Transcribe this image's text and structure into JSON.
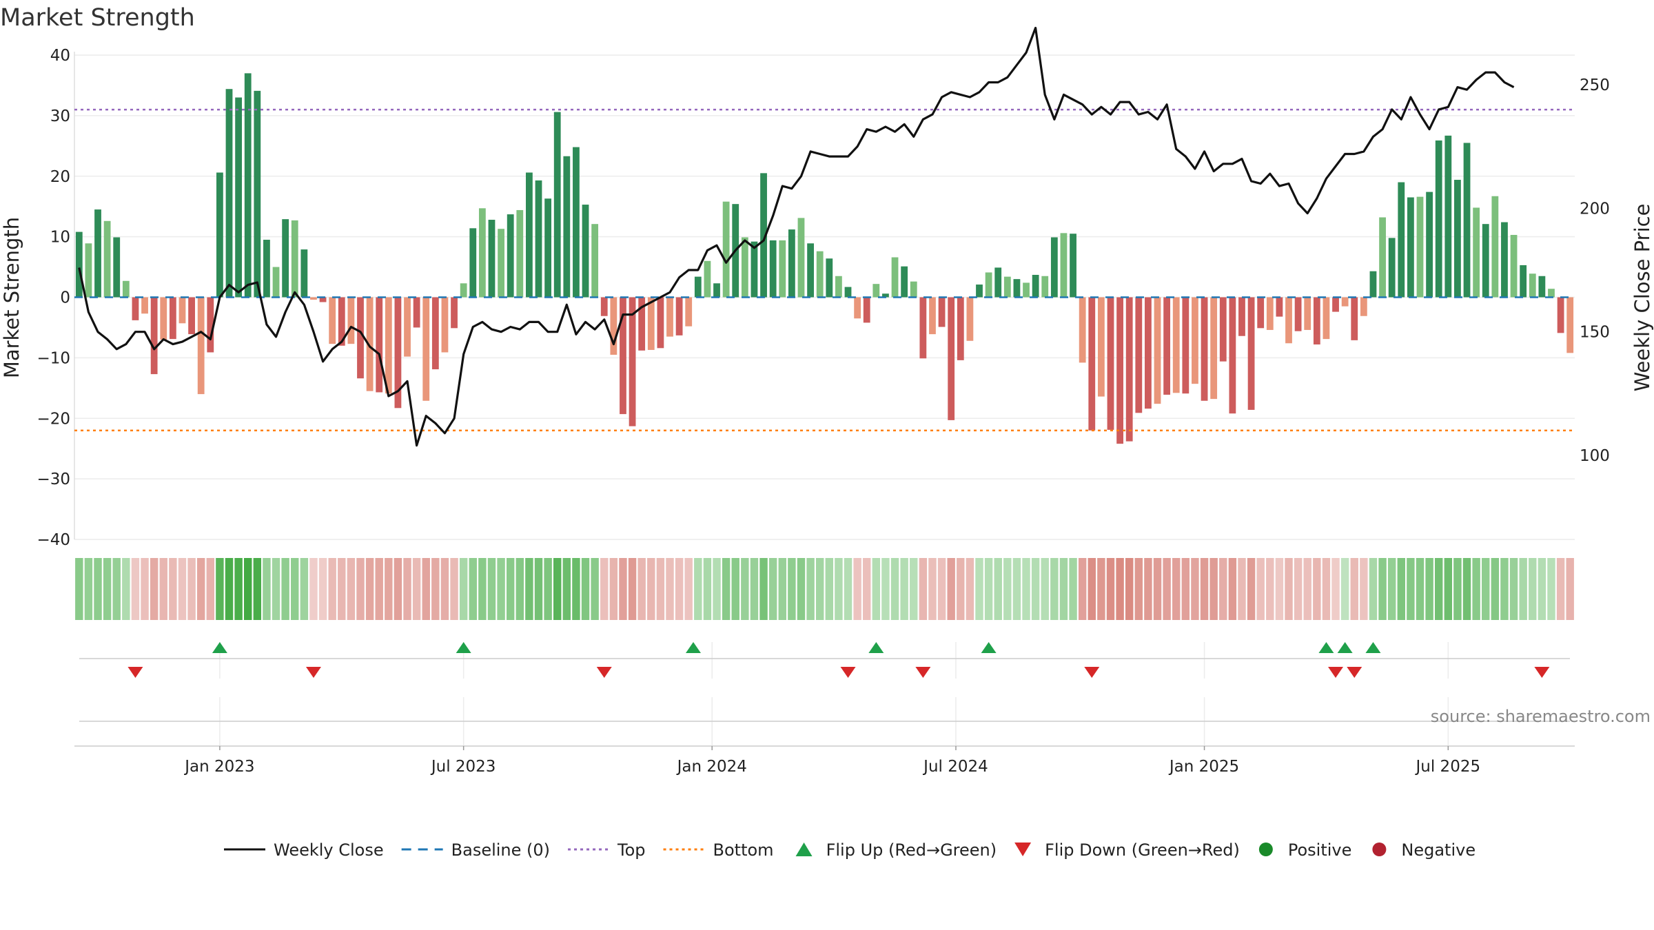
{
  "title": "Market Strength",
  "source": "source: sharemaestro.com",
  "colors": {
    "pos_dark": "#2e8b57",
    "pos_light": "#7cbf7c",
    "neg_dark": "#cd5c5c",
    "neg_light": "#e9967a",
    "close": "#111111",
    "baseline": "#1f77b4",
    "top": "#9467bd",
    "bottom": "#ff7f0e",
    "flip_up": "#1fa04a",
    "flip_down": "#d62728",
    "positive": "#1a8a2a",
    "negative": "#b22230"
  },
  "legend": [
    {
      "label": "Weekly Close",
      "icon": "line-solid"
    },
    {
      "label": "Baseline (0)",
      "icon": "line-dashed"
    },
    {
      "label": "Top",
      "icon": "line-dotted-purple"
    },
    {
      "label": "Bottom",
      "icon": "line-dotted-orange"
    },
    {
      "label": "Flip Up (Red→Green)",
      "icon": "triangle-up"
    },
    {
      "label": "Flip Down (Green→Red)",
      "icon": "triangle-down"
    },
    {
      "label": "Positive",
      "icon": "dot-green"
    },
    {
      "label": "Negative",
      "icon": "dot-red"
    }
  ],
  "chart_data": {
    "type": "bar",
    "ylabel": "Market Strength",
    "y2label": "Weekly Close Price",
    "ylim": [
      -40,
      40
    ],
    "y2lim": [
      66,
      262
    ],
    "yticks": [
      40,
      30,
      20,
      10,
      0,
      -10,
      -20,
      -30,
      -40
    ],
    "y2ticks": [
      250,
      200,
      150,
      100
    ],
    "ytick_labels": [
      "40",
      "30",
      "20",
      "10",
      "0",
      "−10",
      "−20",
      "−30",
      "−40"
    ],
    "y2tick_labels": [
      "250",
      "200",
      "150",
      "100"
    ],
    "xticks": [
      "Jan 2023",
      "Jul 2023",
      "Jan 2024",
      "Jul 2024",
      "Jan 2025",
      "Jul 2025"
    ],
    "xtick_weeks": [
      15,
      41,
      67.5,
      93.5,
      120,
      146
    ],
    "top_line": 31,
    "bottom_line": -22,
    "series": [
      {
        "name": "Market Strength",
        "values": [
          10.8,
          8.9,
          14.5,
          12.6,
          9.9,
          2.7,
          -3.8,
          -2.7,
          -12.7,
          -7,
          -6.9,
          -4.3,
          -6.1,
          -16,
          -9.1,
          20.6,
          34.4,
          33,
          37,
          34.1,
          9.5,
          5,
          12.9,
          12.7,
          7.9,
          -0.4,
          -0.8,
          -7.7,
          -8,
          -7.7,
          -13.4,
          -15.5,
          -15.7,
          -15.9,
          -18.3,
          -9.8,
          -5,
          -17.1,
          -11.9,
          -9.1,
          -5.1,
          2.3,
          11.4,
          14.7,
          12.8,
          11.3,
          13.7,
          14.4,
          20.6,
          19.3,
          16.3,
          30.6,
          23.3,
          24.8,
          15.3,
          12.1,
          -3.1,
          -9.5,
          -19.3,
          -21.3,
          -8.8,
          -8.7,
          -8.4,
          -6.5,
          -6.3,
          -4.8,
          3.4,
          6,
          2.3,
          15.8,
          15.4,
          9.9,
          9.2,
          20.5,
          9.4,
          9.4,
          11.2,
          13.1,
          8.9,
          7.6,
          6.4,
          3.5,
          1.7,
          -3.5,
          -4.2,
          2.2,
          0.6,
          6.6,
          5.1,
          2.6,
          -10.1,
          -6.1,
          -4.9,
          -20.3,
          -10.4,
          -7.2,
          2.1,
          4.1,
          4.9,
          3.4,
          3,
          2.4,
          3.7,
          3.5,
          9.9,
          10.6,
          10.5,
          -10.8,
          -22,
          -16.4,
          -21.9,
          -24.2,
          -23.8,
          -19.1,
          -18.4,
          -17.6,
          -16.1,
          -15.8,
          -15.9,
          -14.3,
          -17.1,
          -16.8,
          -10.6,
          -19.2,
          -6.4,
          -18.6,
          -5.1,
          -5.4,
          -3.2,
          -7.6,
          -5.6,
          -5.4,
          -7.8,
          -6.9,
          -2.4,
          -1.5,
          -7.1,
          -3.1,
          4.3,
          13.2,
          9.8,
          19,
          16.5,
          16.6,
          17.4,
          25.9,
          26.7,
          19.4,
          25.5,
          14.8,
          12.1,
          16.7,
          12.4,
          10.3,
          5.3,
          3.9,
          3.5,
          1.4,
          -5.9,
          -9.2
        ]
      },
      {
        "name": "Weekly Close",
        "values": [
          176,
          158,
          150,
          147,
          143,
          145,
          150,
          150,
          143,
          147,
          145,
          146,
          148,
          150,
          147,
          164,
          169,
          166,
          169,
          170,
          153,
          148,
          158,
          166,
          161,
          150,
          138,
          143,
          146,
          152,
          150,
          144,
          141,
          124,
          126,
          130,
          104,
          116,
          113,
          109,
          115,
          141,
          152,
          154,
          151,
          150,
          152,
          151,
          154,
          154,
          150,
          150,
          161,
          149,
          154,
          151,
          155,
          145,
          157,
          157,
          160,
          162,
          164,
          166,
          172,
          175,
          175,
          183,
          185,
          178,
          183,
          187,
          184,
          187,
          197,
          209,
          208,
          213,
          223,
          222,
          221,
          221,
          221,
          225,
          232,
          231,
          233,
          231,
          234,
          229,
          236,
          238,
          245,
          247,
          246,
          245,
          247,
          251,
          251,
          253,
          258,
          263,
          273,
          246,
          236,
          246,
          244,
          242,
          238,
          241,
          238,
          243,
          243,
          238,
          239,
          236,
          242,
          224,
          221,
          216,
          223,
          215,
          218,
          218,
          220,
          211,
          210,
          214,
          209,
          210,
          202,
          198,
          204,
          212,
          217,
          222,
          222,
          223,
          229,
          232,
          240,
          236,
          245,
          238,
          232,
          240,
          241,
          249,
          248,
          252,
          255,
          255,
          251,
          249
        ]
      }
    ],
    "ribbon_intensity": [
      0.55,
      0.48,
      0.52,
      0.5,
      0.47,
      0.3,
      -0.25,
      -0.3,
      -0.48,
      -0.38,
      -0.35,
      -0.28,
      -0.32,
      -0.5,
      -0.42,
      0.85,
      0.95,
      0.93,
      0.98,
      0.95,
      0.45,
      0.4,
      0.5,
      0.5,
      0.42,
      -0.2,
      -0.22,
      -0.35,
      -0.38,
      -0.38,
      -0.45,
      -0.5,
      -0.5,
      -0.5,
      -0.55,
      -0.45,
      -0.35,
      -0.52,
      -0.48,
      -0.45,
      -0.35,
      0.35,
      0.5,
      0.55,
      0.5,
      0.48,
      0.55,
      0.58,
      0.7,
      0.68,
      0.62,
      0.85,
      0.72,
      0.75,
      0.6,
      0.55,
      -0.3,
      -0.4,
      -0.55,
      -0.6,
      -0.38,
      -0.38,
      -0.35,
      -0.32,
      -0.3,
      -0.28,
      0.3,
      0.35,
      0.28,
      0.55,
      0.55,
      0.45,
      0.45,
      0.65,
      0.45,
      0.45,
      0.5,
      0.55,
      0.42,
      0.38,
      0.35,
      0.3,
      0.28,
      -0.28,
      -0.3,
      0.28,
      0.25,
      0.3,
      0.28,
      0.25,
      -0.38,
      -0.32,
      -0.3,
      -0.55,
      -0.4,
      -0.35,
      0.25,
      0.28,
      0.3,
      0.27,
      0.27,
      0.25,
      0.28,
      0.27,
      0.35,
      0.38,
      0.38,
      -0.55,
      -0.7,
      -0.62,
      -0.7,
      -0.72,
      -0.72,
      -0.62,
      -0.6,
      -0.58,
      -0.55,
      -0.55,
      -0.55,
      -0.52,
      -0.58,
      -0.58,
      -0.45,
      -0.6,
      -0.35,
      -0.58,
      -0.3,
      -0.3,
      -0.25,
      -0.38,
      -0.3,
      -0.3,
      -0.38,
      -0.35,
      -0.22,
      0.2,
      -0.35,
      -0.28,
      0.35,
      0.55,
      0.48,
      0.62,
      0.58,
      0.58,
      0.6,
      0.7,
      0.72,
      0.62,
      0.7,
      0.55,
      0.5,
      0.58,
      0.5,
      0.45,
      0.35,
      0.3,
      0.28,
      0.25,
      -0.35,
      -0.42
    ],
    "flip_up_weeks": [
      15,
      41,
      65.5,
      85,
      97,
      133,
      135,
      138
    ],
    "flip_down_weeks": [
      6,
      25,
      56,
      82,
      90,
      108,
      134,
      136,
      156
    ]
  }
}
